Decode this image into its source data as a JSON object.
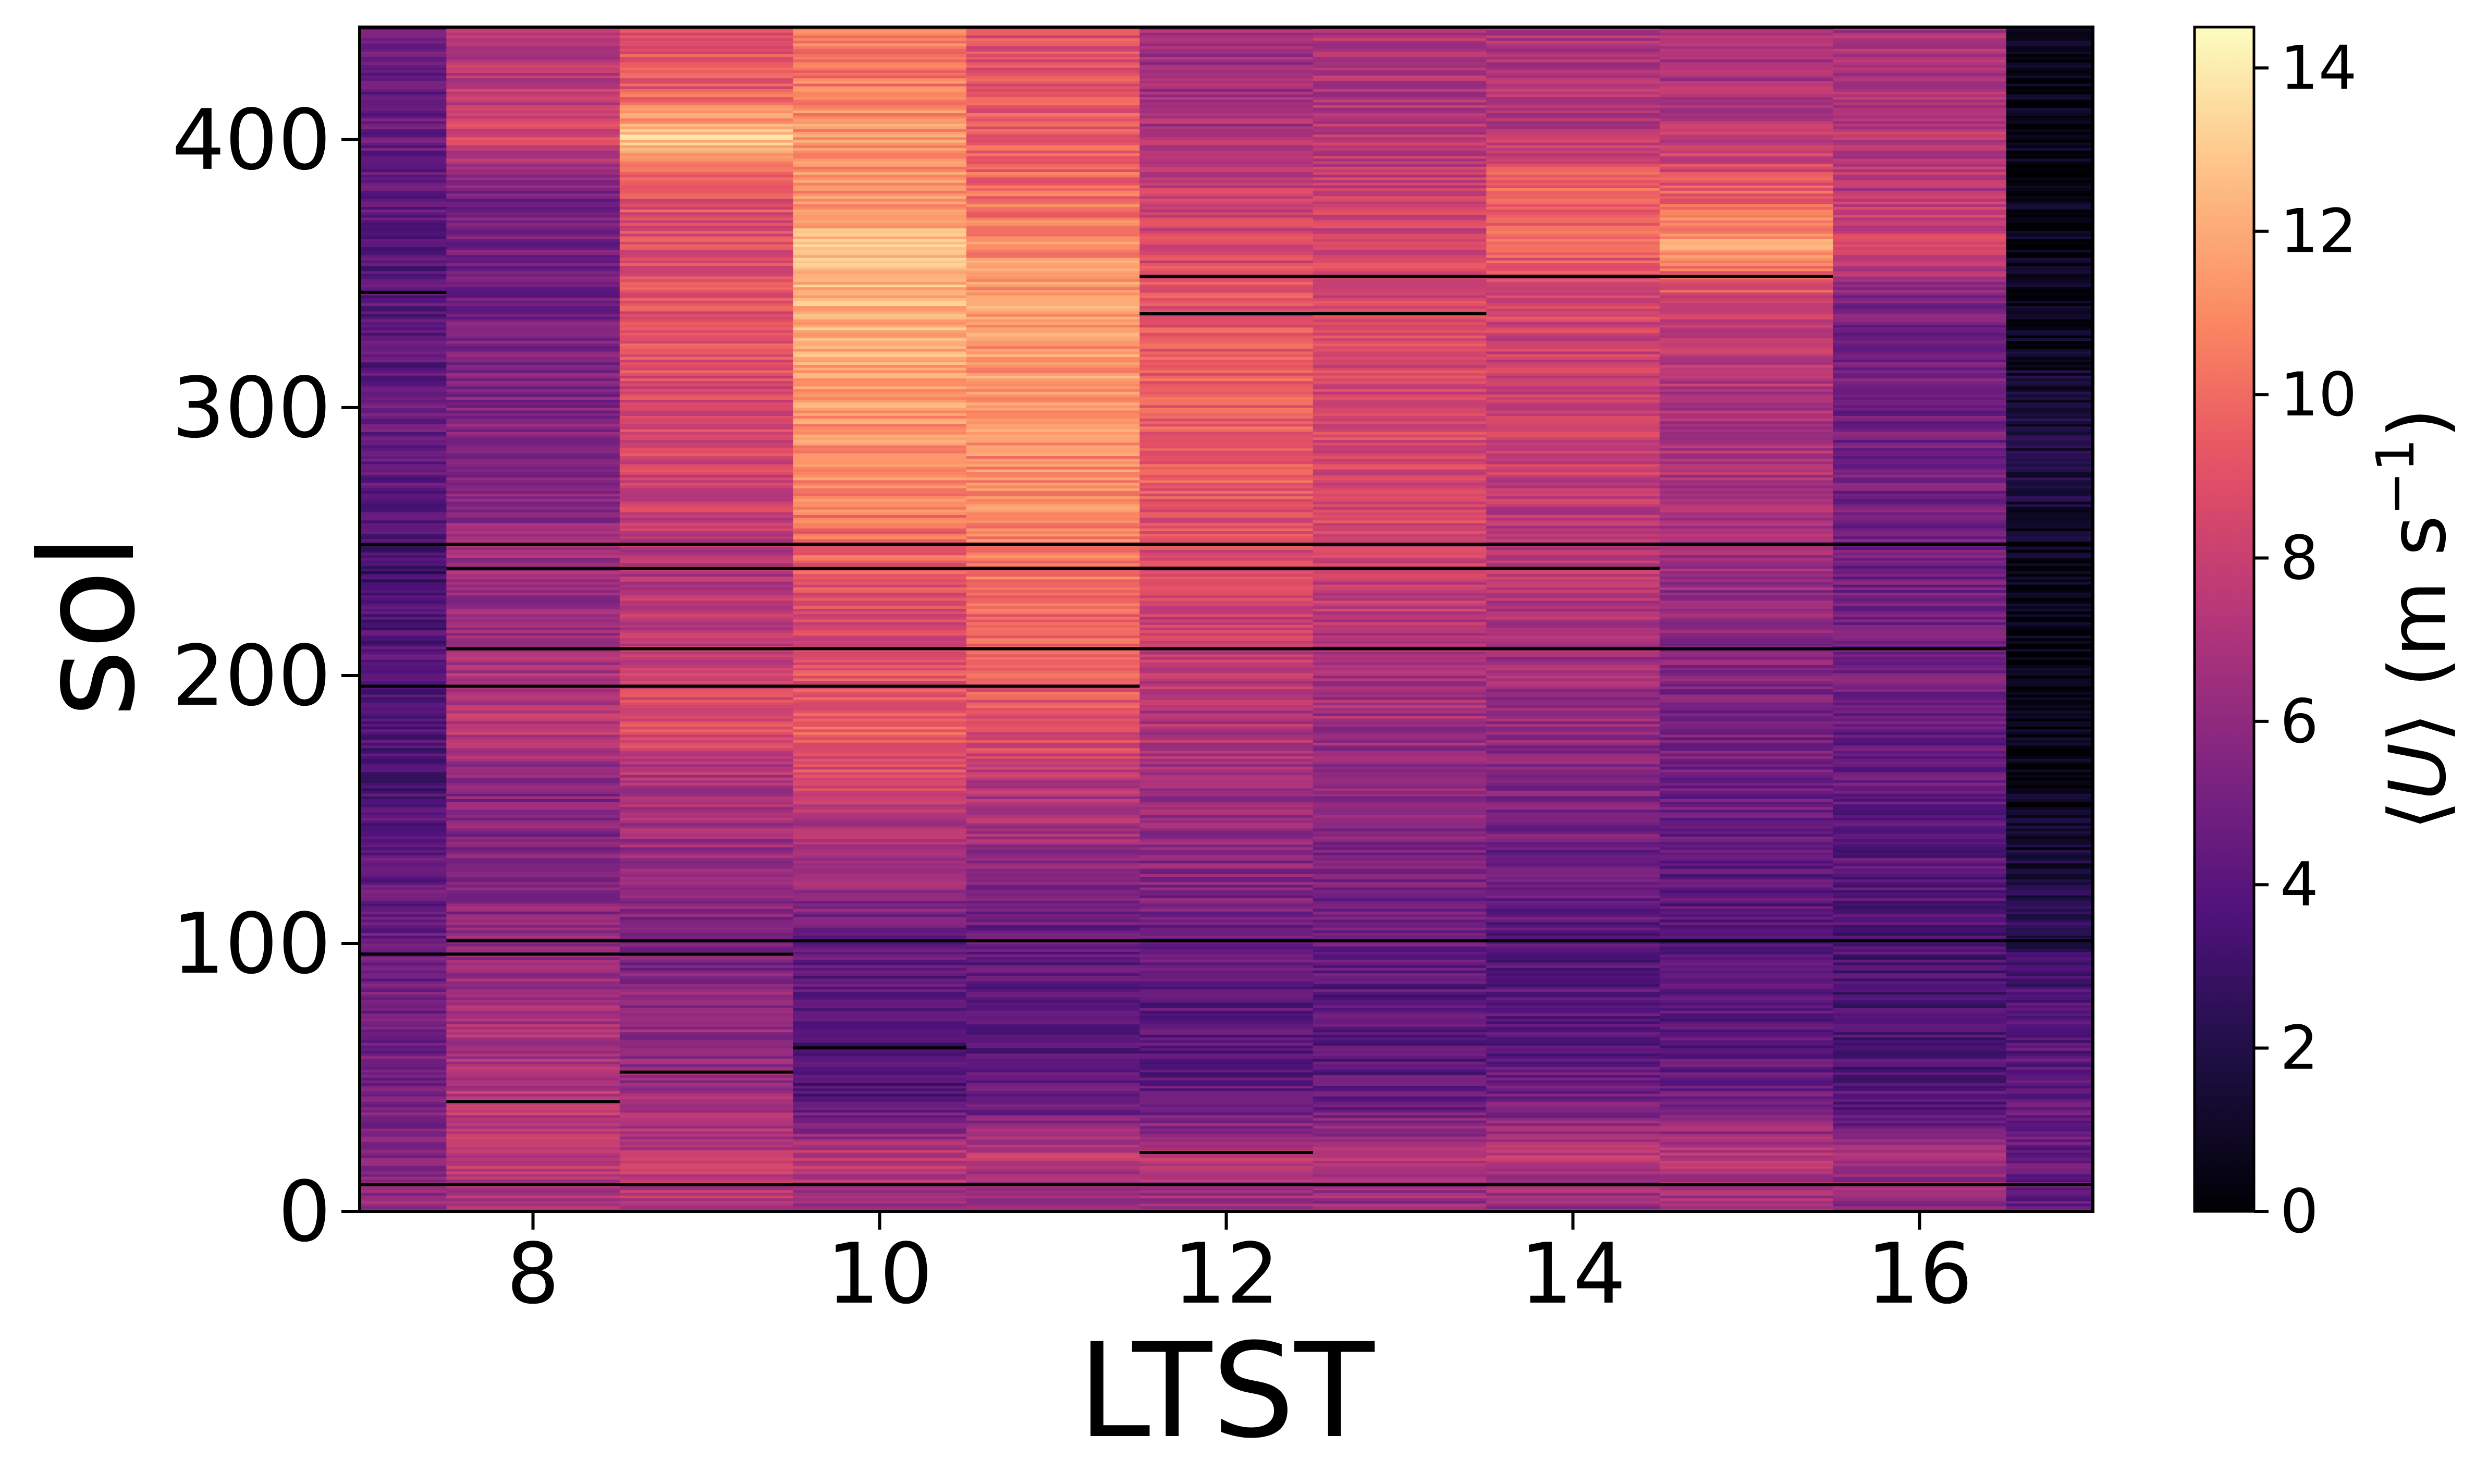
{
  "chart_data": {
    "type": "heatmap",
    "xlabel": "LTST",
    "ylabel": "sol",
    "colorbar_label_parts": [
      "⟨",
      "U",
      "⟩ (m s",
      "−1",
      ")"
    ],
    "xlim": [
      7,
      17
    ],
    "ylim": [
      0,
      442
    ],
    "xticks": [
      8,
      10,
      12,
      14,
      16
    ],
    "yticks": [
      0,
      100,
      200,
      300,
      400
    ],
    "colorbar": {
      "cmap": "magma",
      "vmin": 0,
      "vmax": 14.5,
      "ticks": [
        0,
        2,
        4,
        6,
        8,
        10,
        12,
        14
      ]
    },
    "x_bins": [
      7.0,
      7.5,
      8.5,
      9.5,
      10.5,
      11.5,
      12.5,
      13.5,
      14.5,
      15.5,
      16.5,
      17.0
    ],
    "y_breakpoints": [
      0,
      20,
      40,
      60,
      80,
      100,
      120,
      140,
      160,
      180,
      200,
      220,
      240,
      260,
      280,
      300,
      320,
      340,
      360,
      380,
      400,
      420,
      442
    ],
    "mean_speed_by_hour": [
      {
        "hour_bin": "7",
        "values": [
          6.0,
          5.5,
          5.0,
          5.0,
          5.0,
          4.5,
          4.5,
          4.0,
          3.5,
          3.5,
          4.0,
          3.5,
          3.0,
          4.0,
          4.5,
          4.5,
          4.0,
          4.0,
          4.0,
          4.5,
          4.5,
          4.5
        ]
      },
      {
        "hour_bin": "8",
        "values": [
          7.0,
          7.5,
          7.5,
          7.0,
          6.5,
          6.0,
          5.5,
          5.5,
          5.5,
          7.5,
          7.0,
          6.0,
          6.5,
          6.0,
          5.5,
          5.5,
          5.5,
          5.0,
          5.0,
          5.0,
          8.5,
          7.5
        ]
      },
      {
        "hour_bin": "9",
        "values": [
          7.5,
          7.5,
          6.5,
          6.0,
          6.0,
          5.0,
          6.0,
          6.5,
          7.0,
          9.0,
          8.0,
          7.5,
          7.0,
          8.0,
          8.5,
          8.5,
          9.0,
          9.0,
          9.0,
          9.0,
          13.0,
          9.0
        ]
      },
      {
        "hour_bin": "10",
        "values": [
          6.5,
          7.5,
          4.0,
          3.5,
          4.0,
          4.5,
          6.0,
          7.0,
          8.5,
          9.5,
          9.0,
          8.5,
          9.5,
          10.5,
          11.0,
          11.5,
          12.0,
          12.5,
          12.5,
          11.0,
          11.5,
          10.5
        ]
      },
      {
        "hour_bin": "11",
        "values": [
          6.5,
          7.5,
          4.5,
          4.0,
          4.0,
          4.5,
          5.5,
          6.5,
          7.5,
          9.0,
          9.5,
          10.0,
          10.5,
          11.0,
          11.0,
          11.5,
          11.5,
          11.5,
          11.0,
          10.0,
          9.5,
          9.0
        ]
      },
      {
        "hour_bin": "12",
        "values": [
          6.0,
          7.5,
          4.5,
          4.0,
          4.0,
          4.5,
          5.5,
          6.0,
          6.5,
          7.0,
          7.5,
          8.0,
          8.5,
          9.0,
          9.5,
          9.5,
          9.5,
          9.0,
          8.5,
          8.0,
          7.0,
          6.5
        ]
      },
      {
        "hour_bin": "13",
        "values": [
          6.0,
          7.5,
          4.5,
          4.0,
          4.0,
          4.5,
          5.0,
          5.5,
          6.0,
          6.5,
          7.0,
          7.5,
          8.0,
          8.5,
          8.5,
          8.5,
          8.5,
          8.5,
          8.5,
          8.0,
          7.5,
          7.0
        ]
      },
      {
        "hour_bin": "14",
        "values": [
          6.0,
          7.5,
          5.0,
          4.0,
          4.0,
          4.0,
          4.5,
          5.0,
          5.5,
          6.0,
          6.5,
          7.0,
          7.5,
          7.5,
          8.0,
          8.0,
          8.0,
          8.5,
          9.5,
          10.0,
          7.5,
          7.0
        ]
      },
      {
        "hour_bin": "15",
        "values": [
          6.5,
          7.5,
          5.0,
          4.0,
          4.0,
          4.0,
          4.0,
          4.5,
          5.0,
          5.0,
          5.5,
          6.0,
          6.5,
          7.0,
          7.0,
          7.0,
          7.5,
          8.5,
          11.5,
          9.5,
          7.5,
          7.0
        ]
      },
      {
        "hour_bin": "16",
        "values": [
          6.0,
          6.5,
          4.0,
          3.5,
          3.5,
          3.5,
          4.0,
          4.0,
          4.5,
          4.5,
          5.0,
          5.0,
          5.0,
          5.0,
          5.0,
          5.0,
          5.0,
          5.5,
          8.5,
          7.5,
          7.5,
          7.0
        ]
      },
      {
        "hour_bin": "17",
        "values": [
          4.5,
          4.5,
          4.5,
          4.0,
          3.5,
          2.5,
          2.0,
          1.0,
          0.5,
          0.5,
          0.5,
          0.5,
          0.5,
          1.5,
          2.0,
          1.5,
          1.0,
          0.5,
          0.5,
          0.5,
          0.5,
          0.5
        ]
      }
    ],
    "gap_sols": [
      {
        "sol": 10,
        "from": 7.0,
        "to": 17.0
      },
      {
        "sol": 96,
        "from": 7.0,
        "to": 9.5
      },
      {
        "sol": 101,
        "from": 7.5,
        "to": 17.0
      },
      {
        "sol": 196,
        "from": 7.0,
        "to": 11.5
      },
      {
        "sol": 210,
        "from": 7.5,
        "to": 16.5
      },
      {
        "sol": 240,
        "from": 7.5,
        "to": 14.5
      },
      {
        "sol": 249,
        "from": 7.0,
        "to": 17.0
      },
      {
        "sol": 335,
        "from": 11.5,
        "to": 13.5
      },
      {
        "sol": 349,
        "from": 11.5,
        "to": 15.5
      },
      {
        "sol": 343,
        "from": 7.0,
        "to": 7.5
      },
      {
        "sol": 41,
        "from": 7.5,
        "to": 8.5
      },
      {
        "sol": 52,
        "from": 8.5,
        "to": 9.5
      },
      {
        "sol": 61,
        "from": 9.5,
        "to": 10.5
      },
      {
        "sol": 22,
        "from": 11.5,
        "to": 12.5
      }
    ]
  }
}
